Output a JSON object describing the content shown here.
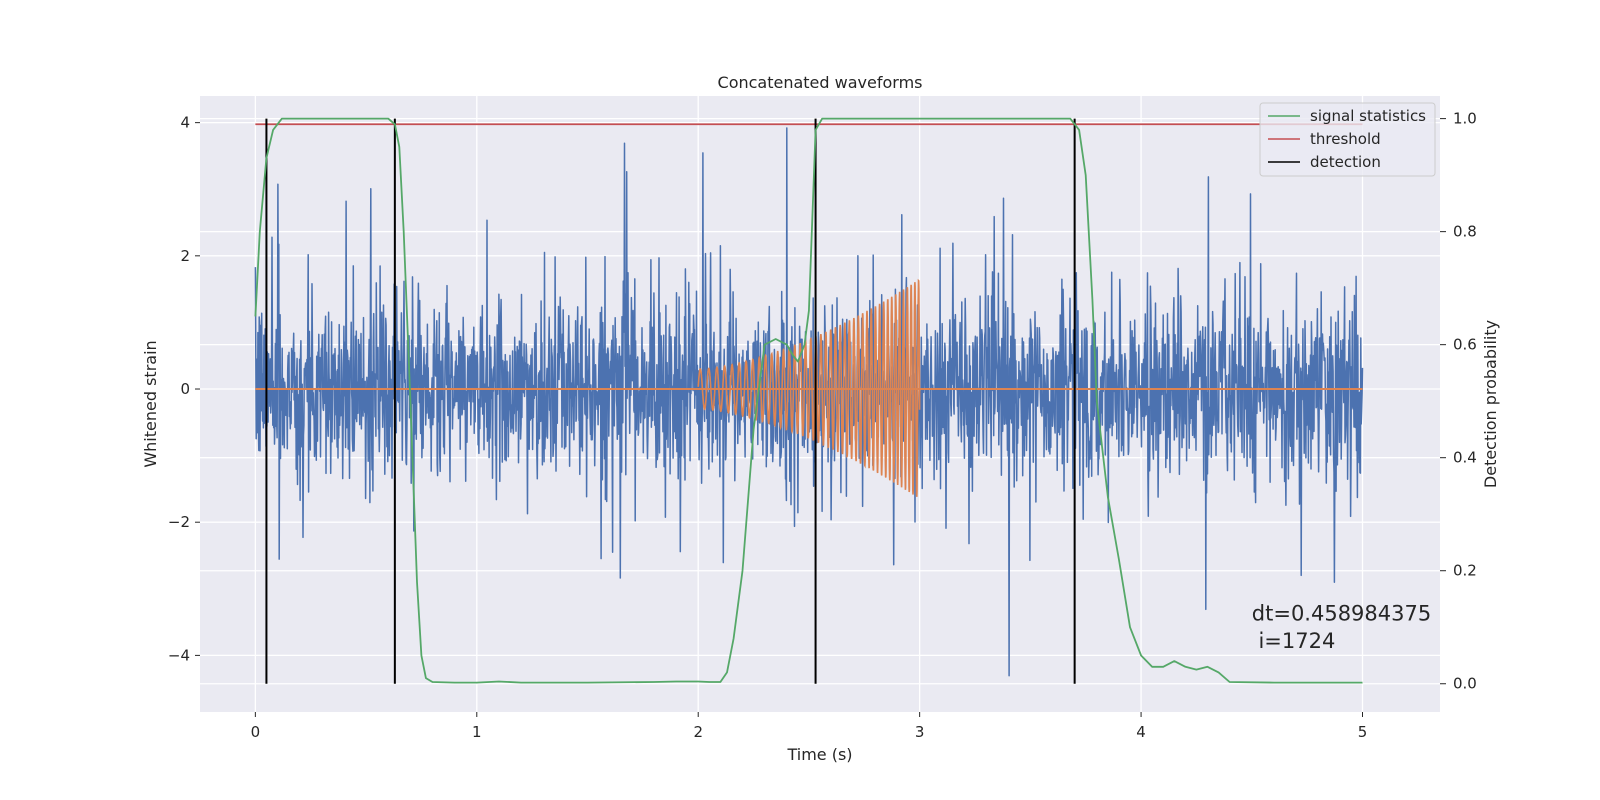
{
  "chart_data": {
    "type": "line",
    "title": "Concatenated waveforms",
    "xlabel": "Time (s)",
    "ylabel": "Whitened strain",
    "ylabel_right": "Detection probability",
    "xlim": [
      -0.25,
      5.35
    ],
    "ylim": [
      -4.85,
      4.4
    ],
    "ylim_right": [
      -0.05,
      1.04
    ],
    "x_ticks": [
      0,
      1,
      2,
      3,
      4,
      5
    ],
    "y_ticks": [
      -4,
      -2,
      0,
      2,
      4
    ],
    "y_ticks_right": [
      0.0,
      0.2,
      0.4,
      0.6,
      0.8,
      1.0
    ],
    "grid": true,
    "legend_position": "top-right",
    "colors": {
      "background": "#eaeaf2",
      "grid": "#ffffff",
      "noise": "#4c72b0",
      "injection": "#dd8452",
      "signal_statistics": "#55a868",
      "threshold": "#c44e52",
      "detection": "#000000"
    },
    "series": [
      {
        "name": "",
        "axis": "left",
        "description_kind": "noise",
        "x_range": [
          0,
          5
        ],
        "typical_amplitude": 1.2,
        "peak_range": [
          -4.4,
          4.0
        ]
      },
      {
        "name": "",
        "axis": "left",
        "description_kind": "chirp",
        "x_range": [
          2.0,
          3.0
        ],
        "amplitude_start": 0.3,
        "amplitude_end": 1.65
      },
      {
        "name": "signal statistics",
        "axis": "right",
        "x": [
          0,
          0.02,
          0.05,
          0.08,
          0.12,
          0.2,
          0.4,
          0.6,
          0.63,
          0.65,
          0.67,
          0.7,
          0.73,
          0.75,
          0.77,
          0.8,
          0.9,
          1.0,
          1.1,
          1.2,
          1.5,
          1.8,
          1.9,
          2.0,
          2.05,
          2.1,
          2.13,
          2.16,
          2.2,
          2.25,
          2.3,
          2.35,
          2.4,
          2.43,
          2.45,
          2.48,
          2.5,
          2.53,
          2.56,
          2.6,
          2.8,
          3.0,
          3.2,
          3.5,
          3.68,
          3.72,
          3.75,
          3.78,
          3.8,
          3.85,
          3.9,
          3.95,
          4.0,
          4.05,
          4.1,
          4.15,
          4.2,
          4.25,
          4.3,
          4.35,
          4.4,
          4.6,
          4.8,
          5.0
        ],
        "values": [
          0.65,
          0.8,
          0.93,
          0.98,
          1.0,
          1.0,
          1.0,
          1.0,
          0.99,
          0.95,
          0.8,
          0.5,
          0.18,
          0.05,
          0.01,
          0.003,
          0.002,
          0.002,
          0.004,
          0.002,
          0.002,
          0.003,
          0.004,
          0.004,
          0.003,
          0.003,
          0.02,
          0.08,
          0.2,
          0.45,
          0.6,
          0.61,
          0.6,
          0.58,
          0.57,
          0.6,
          0.66,
          0.98,
          1.0,
          1.0,
          1.0,
          1.0,
          1.0,
          1.0,
          1.0,
          0.98,
          0.9,
          0.68,
          0.5,
          0.33,
          0.22,
          0.1,
          0.05,
          0.03,
          0.03,
          0.04,
          0.03,
          0.025,
          0.03,
          0.02,
          0.003,
          0.002,
          0.002,
          0.002
        ]
      },
      {
        "name": "threshold",
        "axis": "right",
        "x": [
          0,
          5
        ],
        "values": [
          0.99,
          0.99
        ]
      },
      {
        "name": "detection",
        "axis": "right",
        "x": [
          0.05,
          0.63,
          2.53,
          3.7
        ],
        "line_y_range": [
          0.0,
          1.0
        ]
      }
    ],
    "annotations": [
      {
        "text": "dt=0.458984375",
        "x": 4.5,
        "y": 0.112,
        "axis": "right"
      },
      {
        "text": " i=1724",
        "x": 4.5,
        "y": 0.063,
        "axis": "right"
      }
    ]
  }
}
